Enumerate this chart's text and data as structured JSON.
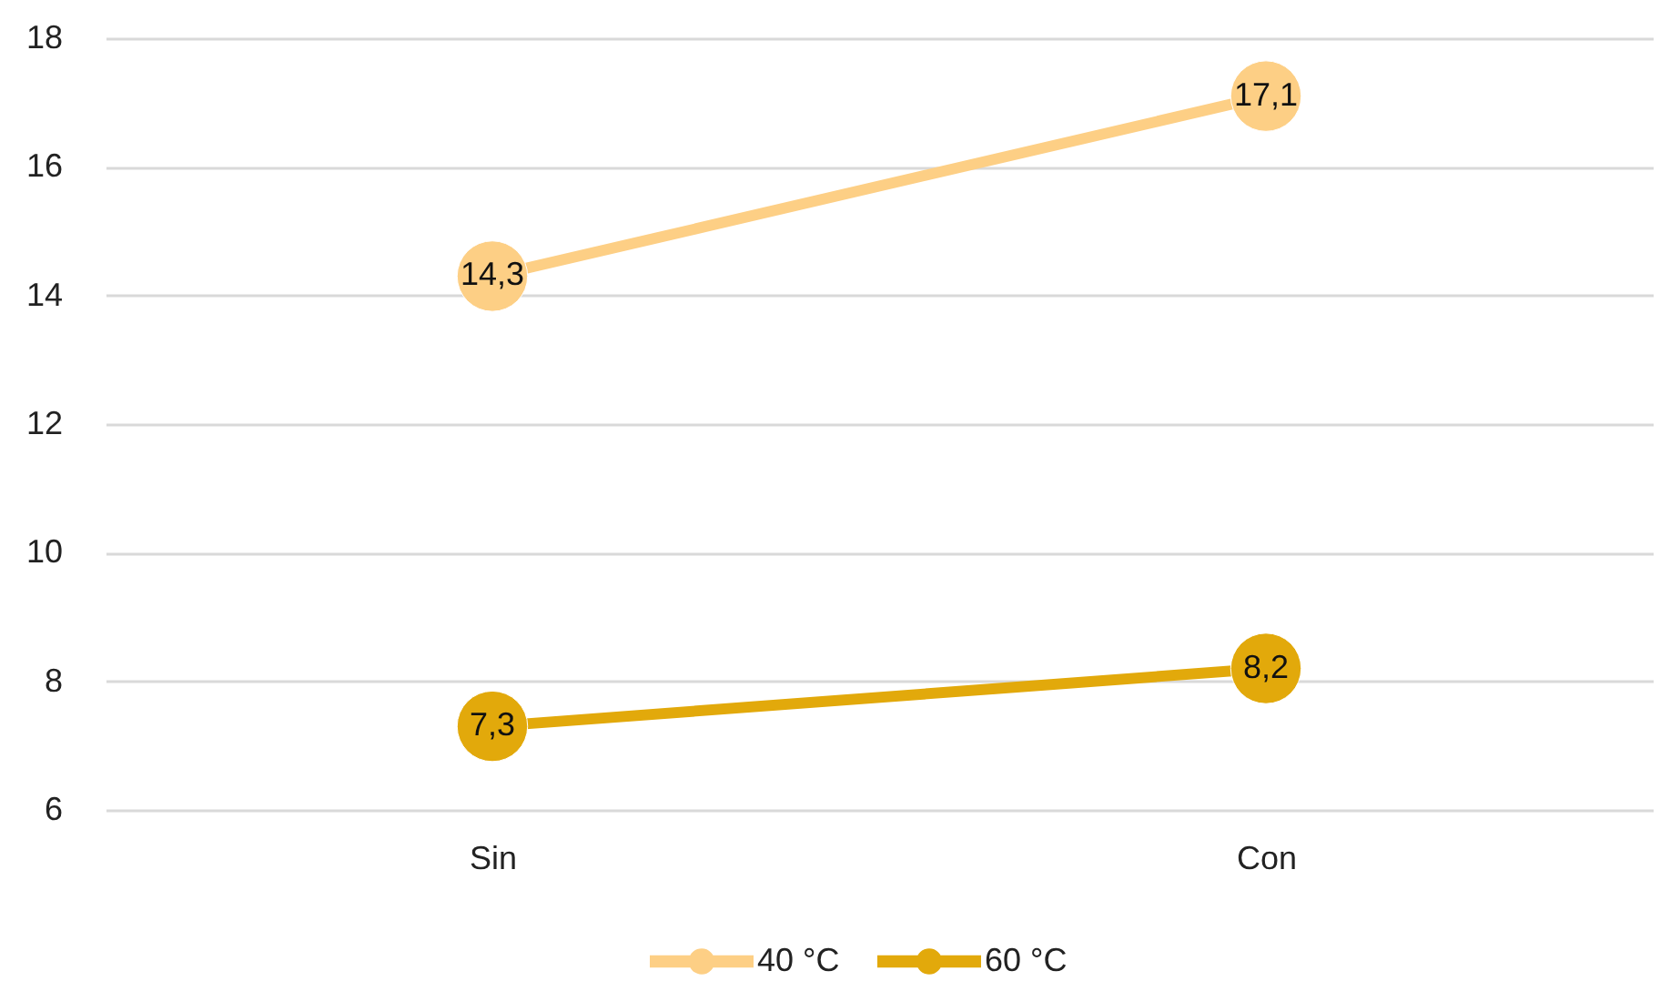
{
  "chart_data": {
    "type": "line",
    "categories": [
      "Sin",
      "Con"
    ],
    "series": [
      {
        "name": "40 °C",
        "color": "#fdcf85",
        "values": [
          14.3,
          17.1
        ],
        "value_labels": [
          "14,3",
          "17,1"
        ]
      },
      {
        "name": "60 °C",
        "color": "#e2a90b",
        "values": [
          7.3,
          8.2
        ],
        "value_labels": [
          "7,3",
          "8,2"
        ]
      }
    ],
    "ylim": [
      6,
      18
    ],
    "yticks": [
      6,
      8,
      10,
      12,
      14,
      16,
      18
    ],
    "grid": "y",
    "legend": "bottom",
    "marker": "circle",
    "line_style": "solid"
  }
}
